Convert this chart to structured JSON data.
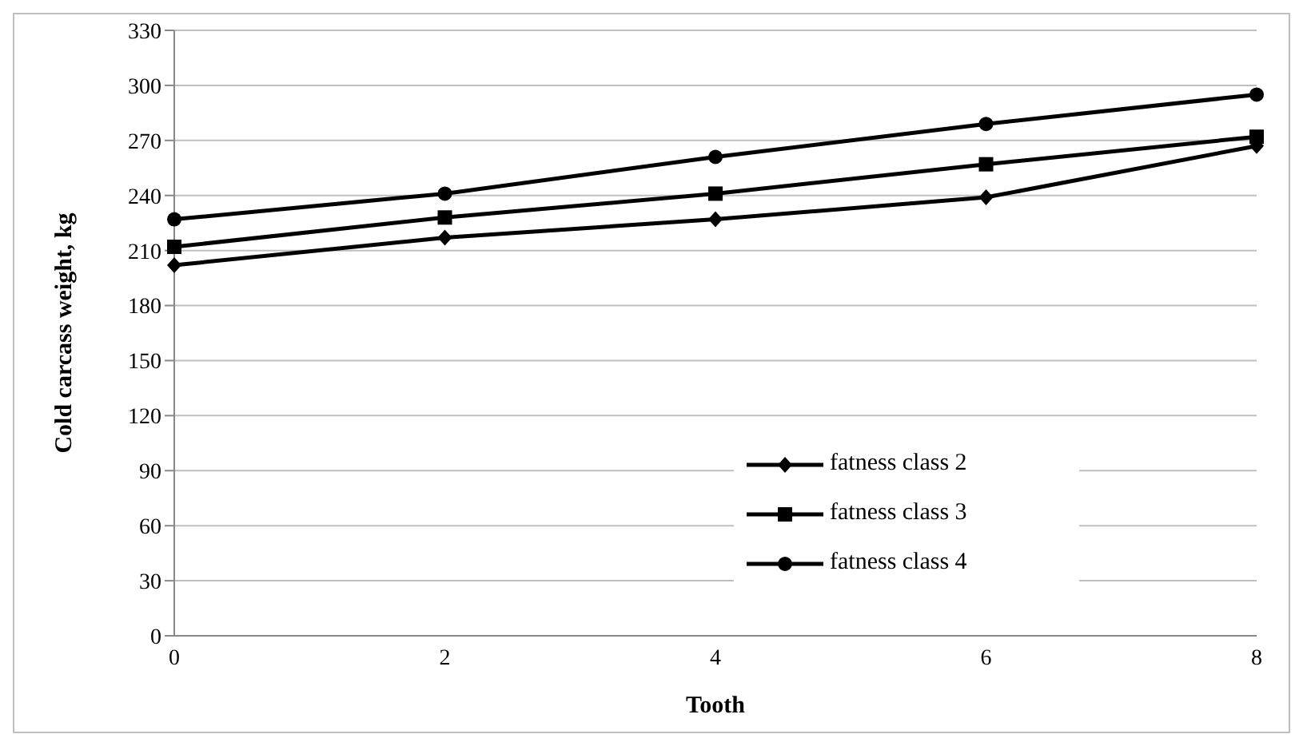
{
  "chart_data": {
    "type": "line",
    "xlabel": "Tooth",
    "ylabel": "Cold carcass weight, kg",
    "categories": [
      "0",
      "2",
      "4",
      "6",
      "8"
    ],
    "series": [
      {
        "name": "fatness class 2",
        "color": "#000000",
        "marker": "diamond",
        "values": [
          202,
          217,
          227,
          239,
          267
        ]
      },
      {
        "name": "fatness class 3",
        "color": "#000000",
        "marker": "square",
        "values": [
          212,
          228,
          241,
          257,
          272
        ]
      },
      {
        "name": "fatness class 4",
        "color": "#000000",
        "marker": "circle",
        "values": [
          227,
          241,
          261,
          279,
          295
        ]
      }
    ],
    "ylim": [
      0,
      330
    ],
    "yticks": [
      0,
      30,
      60,
      90,
      120,
      150,
      180,
      210,
      240,
      270,
      300,
      330
    ],
    "grid": "y",
    "legend": "right"
  }
}
